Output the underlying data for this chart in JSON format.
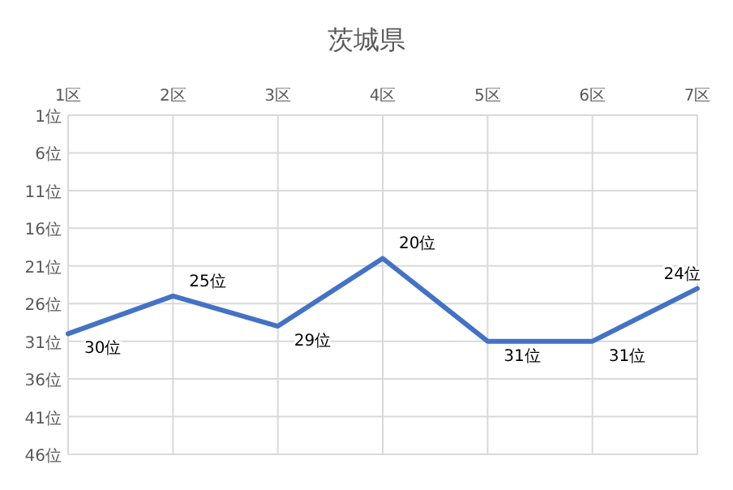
{
  "chart_data": {
    "type": "line",
    "title": "茨城県",
    "categories": [
      "1区",
      "2区",
      "3区",
      "4区",
      "5区",
      "6区",
      "7区"
    ],
    "series": [
      {
        "color": "#4472c4",
        "values": [
          30,
          25,
          29,
          20,
          31,
          31,
          24
        ],
        "value_labels": [
          "30位",
          "25位",
          "29位",
          "20位",
          "31位",
          "31位",
          "24位"
        ]
      }
    ],
    "ylim": [
      46,
      1
    ],
    "yticks": [
      {
        "value": 1,
        "label": "1位"
      },
      {
        "value": 6,
        "label": "6位"
      },
      {
        "value": 11,
        "label": "11位"
      },
      {
        "value": 16,
        "label": "16位"
      },
      {
        "value": 21,
        "label": "21位"
      },
      {
        "value": 26,
        "label": "26位"
      },
      {
        "value": 31,
        "label": "31位"
      },
      {
        "value": 36,
        "label": "36位"
      },
      {
        "value": 41,
        "label": "41位"
      },
      {
        "value": 46,
        "label": "46位"
      }
    ],
    "grid": true,
    "marker": "none",
    "line_style": "solid"
  }
}
